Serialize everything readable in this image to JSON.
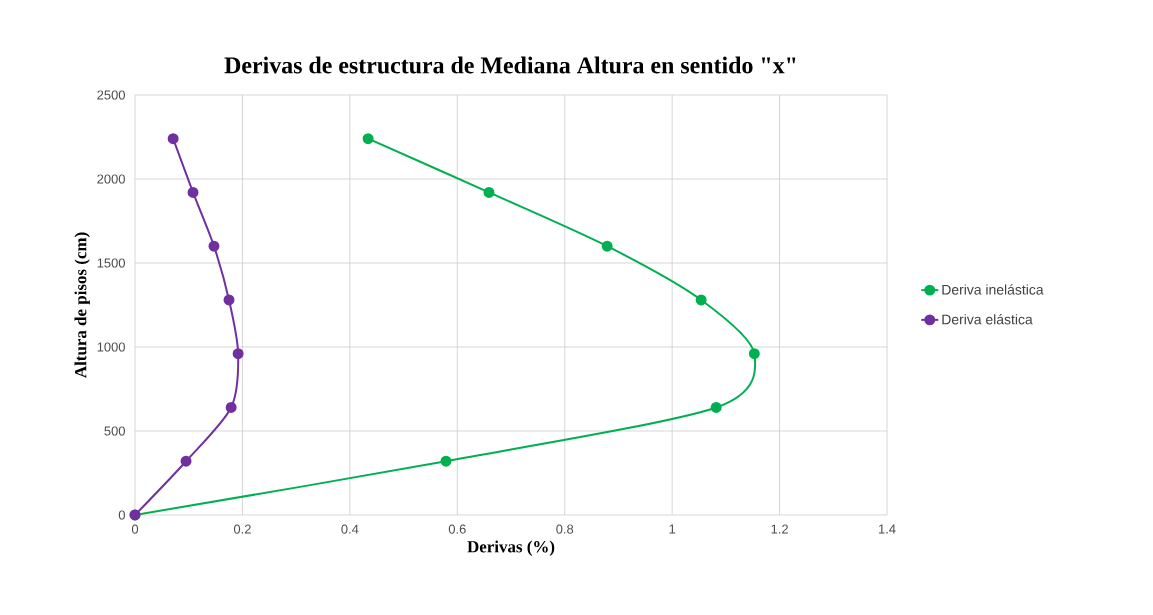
{
  "chart_data": {
    "type": "line",
    "title": "Derivas de estructura de Mediana Altura en sentido \"x\"",
    "xlabel": "Derivas (%)",
    "ylabel": "Altura de pisos (cm)",
    "series": [
      {
        "name": "Deriva inelástica",
        "color": "#00b050",
        "x": [
          0,
          0.579,
          1.082,
          1.153,
          1.054,
          0.879,
          0.659,
          0.434
        ],
        "values": [
          0,
          320,
          640,
          960,
          1280,
          1600,
          1920,
          2240
        ]
      },
      {
        "name": "Deriva elástica",
        "color": "#7030a0",
        "x": [
          0,
          0.095,
          0.179,
          0.192,
          0.175,
          0.147,
          0.108,
          0.071
        ],
        "values": [
          0,
          320,
          640,
          960,
          1280,
          1600,
          1920,
          2240
        ]
      }
    ],
    "xlim": [
      0,
      1.4
    ],
    "ylim": [
      0,
      2500
    ],
    "xticks": [
      0,
      0.2,
      0.4,
      0.6,
      0.8,
      1,
      1.2,
      1.4
    ],
    "yticks": [
      0,
      500,
      1000,
      1500,
      2000,
      2500
    ],
    "grid": true,
    "legend": "right",
    "marker": "circle",
    "line_style": "solid"
  }
}
